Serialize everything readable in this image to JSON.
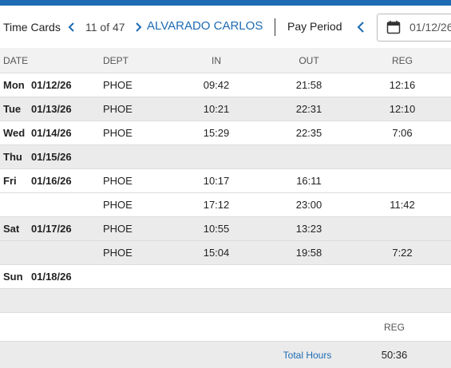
{
  "header": {
    "title": "Time Cards",
    "pager": "11 of 47",
    "employee": "ALVARADO CARLOS",
    "period_label": "Pay Period",
    "period_date": "01/12/26"
  },
  "table": {
    "columns": [
      "DATE",
      "DEPT",
      "IN",
      "OUT",
      "REG"
    ],
    "rows": [
      {
        "day": "Mon",
        "date": "01/12/26",
        "dept": "PHOE",
        "in": "09:42",
        "out": "21:58",
        "reg": "12:16"
      },
      {
        "day": "Tue",
        "date": "01/13/26",
        "dept": "PHOE",
        "in": "10:21",
        "out": "22:31",
        "reg": "12:10"
      },
      {
        "day": "Wed",
        "date": "01/14/26",
        "dept": "PHOE",
        "in": "15:29",
        "out": "22:35",
        "reg": "7:06"
      },
      {
        "day": "Thu",
        "date": "01/15/26"
      },
      {
        "day": "Fri",
        "date": "01/16/26",
        "dept": "PHOE",
        "in": "10:17",
        "out": "16:11"
      },
      {
        "dept": "PHOE",
        "in": "17:12",
        "out": "23:00",
        "reg": "11:42"
      },
      {
        "day": "Sat",
        "date": "01/17/26",
        "dept": "PHOE",
        "in": "10:55",
        "out": "13:23"
      },
      {
        "dept": "PHOE",
        "in": "15:04",
        "out": "19:58",
        "reg": "7:22"
      },
      {
        "day": "Sun",
        "date": "01/18/26"
      }
    ]
  },
  "totals": {
    "column": "REG",
    "label": "Total Hours",
    "value": "50:36"
  }
}
